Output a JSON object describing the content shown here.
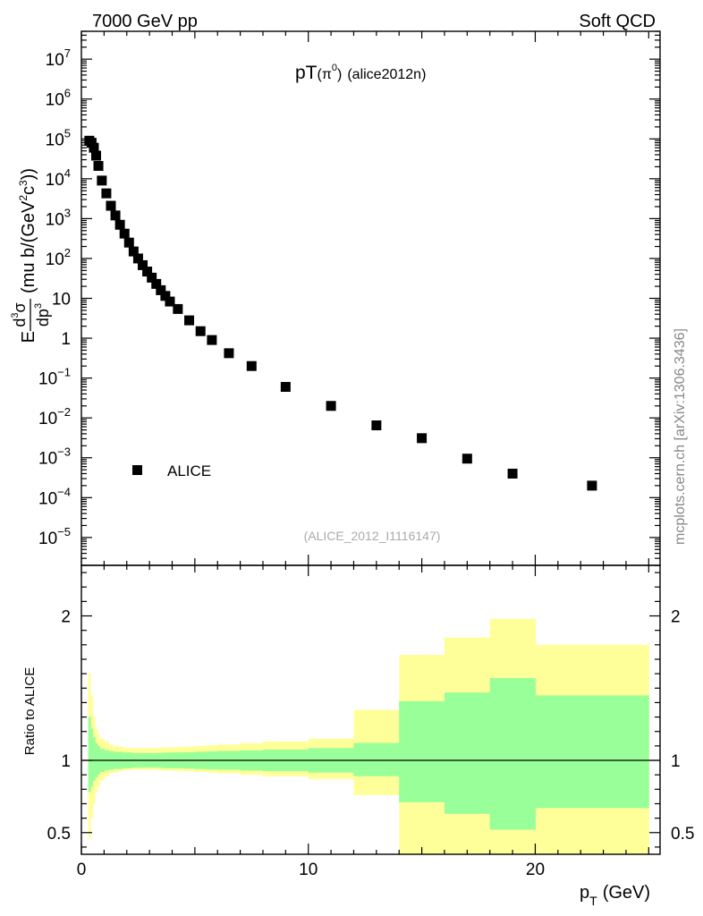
{
  "header": {
    "energy_label": "7000 GeV pp",
    "category_label": "Soft QCD",
    "side_label": "mcplots.cern.ch [arXiv:1306.3436]"
  },
  "chart_data": [
    {
      "type": "scatter",
      "title_main": "pT",
      "title_sub": "(π",
      "title_sub_sup": "0",
      "title_close": ")",
      "title_tag": "(alice2012n)",
      "ylabel_prefix": "E",
      "ylabel_num": "d",
      "ylabel_num_sup": "3",
      "ylabel_sigma": "σ",
      "ylabel_den": "dp",
      "ylabel_den_sup": "3",
      "ylabel_units_a": "(mu b/(GeV",
      "ylabel_units_sup": "2",
      "ylabel_units_b": "c",
      "ylabel_units_sup2": "3",
      "ylabel_units_c": "))",
      "yscale": "log",
      "ylim": [
        2e-06,
        50000000.0
      ],
      "xlim": [
        0,
        25.5
      ],
      "ytick_labels": [
        {
          "v": 1e-05,
          "base": "10",
          "exp": "−5"
        },
        {
          "v": 0.0001,
          "base": "10",
          "exp": "−4"
        },
        {
          "v": 0.001,
          "base": "10",
          "exp": "−3"
        },
        {
          "v": 0.01,
          "base": "10",
          "exp": "−2"
        },
        {
          "v": 0.1,
          "base": "10",
          "exp": "−1"
        },
        {
          "v": 1,
          "base": "1",
          "exp": ""
        },
        {
          "v": 10,
          "base": "10",
          "exp": ""
        },
        {
          "v": 100,
          "base": "10",
          "exp": "2"
        },
        {
          "v": 1000.0,
          "base": "10",
          "exp": "3"
        },
        {
          "v": 10000.0,
          "base": "10",
          "exp": "4"
        },
        {
          "v": 100000.0,
          "base": "10",
          "exp": "5"
        },
        {
          "v": 1000000.0,
          "base": "10",
          "exp": "6"
        },
        {
          "v": 10000000.0,
          "base": "10",
          "exp": "7"
        }
      ],
      "legend": {
        "label": "ALICE",
        "placement": "bottom-left"
      },
      "watermark": "(ALICE_2012_I1116147)",
      "series": [
        {
          "name": "ALICE",
          "marker": "square",
          "color": "#000000",
          "points": [
            [
              0.35,
              90000
            ],
            [
              0.45,
              80000
            ],
            [
              0.55,
              60000
            ],
            [
              0.65,
              38000
            ],
            [
              0.75,
              21000
            ],
            [
              0.9,
              9000
            ],
            [
              1.1,
              4300
            ],
            [
              1.3,
              2100
            ],
            [
              1.5,
              1200
            ],
            [
              1.7,
              700
            ],
            [
              1.9,
              420
            ],
            [
              2.1,
              250
            ],
            [
              2.3,
              150
            ],
            [
              2.5,
              100
            ],
            [
              2.7,
              68
            ],
            [
              2.9,
              47
            ],
            [
              3.1,
              33
            ],
            [
              3.3,
              23
            ],
            [
              3.5,
              16
            ],
            [
              3.7,
              11.5
            ],
            [
              3.9,
              8.3
            ],
            [
              4.25,
              5.4
            ],
            [
              4.75,
              2.8
            ],
            [
              5.25,
              1.5
            ],
            [
              5.75,
              0.9
            ],
            [
              6.5,
              0.42
            ],
            [
              7.5,
              0.2
            ],
            [
              9.0,
              0.06
            ],
            [
              11.0,
              0.02
            ],
            [
              13.0,
              0.0065
            ],
            [
              15.0,
              0.0031
            ],
            [
              17.0,
              0.00095
            ],
            [
              19.0,
              0.0004
            ],
            [
              22.5,
              0.0002
            ]
          ]
        }
      ]
    },
    {
      "type": "area",
      "ylabel": "Ratio to ALICE",
      "xlabel_main": "p",
      "xlabel_sub": "T",
      "xlabel_unit": "(GeV)",
      "xlim": [
        0,
        25.5
      ],
      "ylim": [
        0.35,
        2.35
      ],
      "xticks": [
        {
          "v": 0,
          "label": "0"
        },
        {
          "v": 10,
          "label": "10"
        },
        {
          "v": 20,
          "label": "20"
        }
      ],
      "yticks": [
        {
          "v": 0.5,
          "label": "0.5"
        },
        {
          "v": 1,
          "label": "1"
        },
        {
          "v": 2,
          "label": "2"
        }
      ],
      "reference_line": 1,
      "band_colors": {
        "outer": "#ffff99",
        "inner": "#99ff99",
        "line": "#000000"
      },
      "bands": [
        {
          "x0": 0.3,
          "x1": 0.4,
          "outer": [
            0.46,
            1.6
          ],
          "inner": [
            0.78,
            1.3
          ]
        },
        {
          "x0": 0.4,
          "x1": 0.5,
          "outer": [
            0.6,
            1.45
          ],
          "inner": [
            0.82,
            1.22
          ]
        },
        {
          "x0": 0.5,
          "x1": 0.6,
          "outer": [
            0.7,
            1.3
          ],
          "inner": [
            0.86,
            1.16
          ]
        },
        {
          "x0": 0.6,
          "x1": 0.7,
          "outer": [
            0.78,
            1.22
          ],
          "inner": [
            0.88,
            1.12
          ]
        },
        {
          "x0": 0.7,
          "x1": 0.8,
          "outer": [
            0.82,
            1.18
          ],
          "inner": [
            0.9,
            1.1
          ]
        },
        {
          "x0": 0.8,
          "x1": 1.0,
          "outer": [
            0.86,
            1.15
          ],
          "inner": [
            0.92,
            1.08
          ]
        },
        {
          "x0": 1.0,
          "x1": 1.2,
          "outer": [
            0.89,
            1.13
          ],
          "inner": [
            0.93,
            1.07
          ]
        },
        {
          "x0": 1.2,
          "x1": 1.4,
          "outer": [
            0.91,
            1.11
          ],
          "inner": [
            0.935,
            1.065
          ]
        },
        {
          "x0": 1.4,
          "x1": 1.6,
          "outer": [
            0.92,
            1.1
          ],
          "inner": [
            0.94,
            1.06
          ]
        },
        {
          "x0": 1.6,
          "x1": 1.8,
          "outer": [
            0.925,
            1.095
          ],
          "inner": [
            0.94,
            1.06
          ]
        },
        {
          "x0": 1.8,
          "x1": 2.0,
          "outer": [
            0.93,
            1.09
          ],
          "inner": [
            0.945,
            1.055
          ]
        },
        {
          "x0": 2.0,
          "x1": 2.2,
          "outer": [
            0.935,
            1.085
          ],
          "inner": [
            0.945,
            1.055
          ]
        },
        {
          "x0": 2.2,
          "x1": 2.4,
          "outer": [
            0.935,
            1.085
          ],
          "inner": [
            0.95,
            1.05
          ]
        },
        {
          "x0": 2.4,
          "x1": 2.6,
          "outer": [
            0.935,
            1.085
          ],
          "inner": [
            0.95,
            1.05
          ]
        },
        {
          "x0": 2.6,
          "x1": 2.8,
          "outer": [
            0.935,
            1.085
          ],
          "inner": [
            0.95,
            1.05
          ]
        },
        {
          "x0": 2.8,
          "x1": 3.0,
          "outer": [
            0.935,
            1.085
          ],
          "inner": [
            0.95,
            1.05
          ]
        },
        {
          "x0": 3.0,
          "x1": 3.2,
          "outer": [
            0.935,
            1.085
          ],
          "inner": [
            0.95,
            1.05
          ]
        },
        {
          "x0": 3.2,
          "x1": 3.4,
          "outer": [
            0.935,
            1.085
          ],
          "inner": [
            0.95,
            1.05
          ]
        },
        {
          "x0": 3.4,
          "x1": 3.6,
          "outer": [
            0.932,
            1.088
          ],
          "inner": [
            0.948,
            1.052
          ]
        },
        {
          "x0": 3.6,
          "x1": 3.8,
          "outer": [
            0.93,
            1.09
          ],
          "inner": [
            0.946,
            1.054
          ]
        },
        {
          "x0": 3.8,
          "x1": 4.0,
          "outer": [
            0.93,
            1.09
          ],
          "inner": [
            0.946,
            1.054
          ]
        },
        {
          "x0": 4.0,
          "x1": 4.5,
          "outer": [
            0.928,
            1.092
          ],
          "inner": [
            0.945,
            1.055
          ]
        },
        {
          "x0": 4.5,
          "x1": 5.0,
          "outer": [
            0.925,
            1.095
          ],
          "inner": [
            0.943,
            1.057
          ]
        },
        {
          "x0": 5.0,
          "x1": 5.5,
          "outer": [
            0.92,
            1.1
          ],
          "inner": [
            0.94,
            1.06
          ]
        },
        {
          "x0": 5.5,
          "x1": 6.0,
          "outer": [
            0.915,
            1.105
          ],
          "inner": [
            0.937,
            1.063
          ]
        },
        {
          "x0": 6.0,
          "x1": 7.0,
          "outer": [
            0.91,
            1.11
          ],
          "inner": [
            0.935,
            1.065
          ]
        },
        {
          "x0": 7.0,
          "x1": 8.0,
          "outer": [
            0.9,
            1.12
          ],
          "inner": [
            0.93,
            1.07
          ]
        },
        {
          "x0": 8.0,
          "x1": 10.0,
          "outer": [
            0.89,
            1.13
          ],
          "inner": [
            0.925,
            1.075
          ]
        },
        {
          "x0": 10.0,
          "x1": 12.0,
          "outer": [
            0.87,
            1.15
          ],
          "inner": [
            0.915,
            1.085
          ]
        },
        {
          "x0": 12.0,
          "x1": 14.0,
          "outer": [
            0.76,
            1.35
          ],
          "inner": [
            0.89,
            1.12
          ]
        },
        {
          "x0": 14.0,
          "x1": 16.0,
          "outer": [
            0.35,
            1.73
          ],
          "inner": [
            0.71,
            1.41
          ]
        },
        {
          "x0": 16.0,
          "x1": 18.0,
          "outer": [
            0.35,
            1.85
          ],
          "inner": [
            0.63,
            1.47
          ]
        },
        {
          "x0": 18.0,
          "x1": 20.0,
          "outer": [
            0.35,
            1.98
          ],
          "inner": [
            0.52,
            1.57
          ]
        },
        {
          "x0": 20.0,
          "x1": 25.0,
          "outer": [
            0.35,
            1.8
          ],
          "inner": [
            0.67,
            1.45
          ]
        }
      ]
    }
  ]
}
